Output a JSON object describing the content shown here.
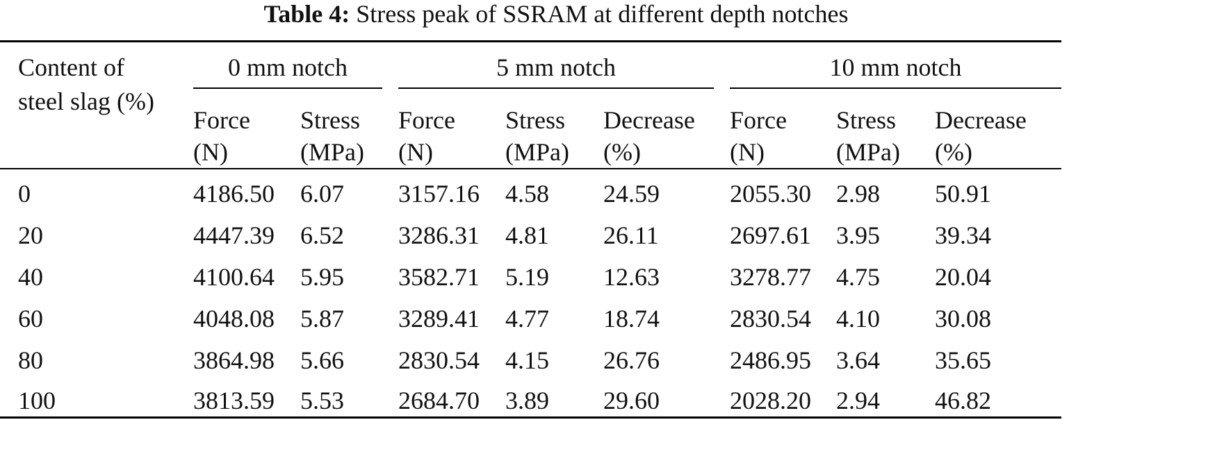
{
  "caption": {
    "label": "Table 4:",
    "text": "Stress peak of SSRAM at different depth notches"
  },
  "header": {
    "row_label_line1": "Content of",
    "row_label_line2": "steel slag (%)",
    "groups": [
      "0 mm notch",
      "5 mm notch",
      "10 mm notch"
    ],
    "subcols": [
      {
        "line1": "Force",
        "line2": "(N)"
      },
      {
        "line1": "Stress",
        "line2": "(MPa)"
      },
      {
        "line1": "Force",
        "line2": "(N)"
      },
      {
        "line1": "Stress",
        "line2": "(MPa)"
      },
      {
        "line1": "Decrease",
        "line2": "(%)"
      },
      {
        "line1": "Force",
        "line2": "(N)"
      },
      {
        "line1": "Stress",
        "line2": "(MPa)"
      },
      {
        "line1": "Decrease",
        "line2": "(%)"
      }
    ]
  },
  "rows": [
    [
      "0",
      "4186.50",
      "6.07",
      "3157.16",
      "4.58",
      "24.59",
      "2055.30",
      "2.98",
      "50.91"
    ],
    [
      "20",
      "4447.39",
      "6.52",
      "3286.31",
      "4.81",
      "26.11",
      "2697.61",
      "3.95",
      "39.34"
    ],
    [
      "40",
      "4100.64",
      "5.95",
      "3582.71",
      "5.19",
      "12.63",
      "3278.77",
      "4.75",
      "20.04"
    ],
    [
      "60",
      "4048.08",
      "5.87",
      "3289.41",
      "4.77",
      "18.74",
      "2830.54",
      "4.10",
      "30.08"
    ],
    [
      "80",
      "3864.98",
      "5.66",
      "2830.54",
      "4.15",
      "26.76",
      "2486.95",
      "3.64",
      "35.65"
    ],
    [
      "100",
      "3813.59",
      "5.53",
      "2684.70",
      "3.89",
      "29.60",
      "2028.20",
      "2.94",
      "46.82"
    ]
  ]
}
